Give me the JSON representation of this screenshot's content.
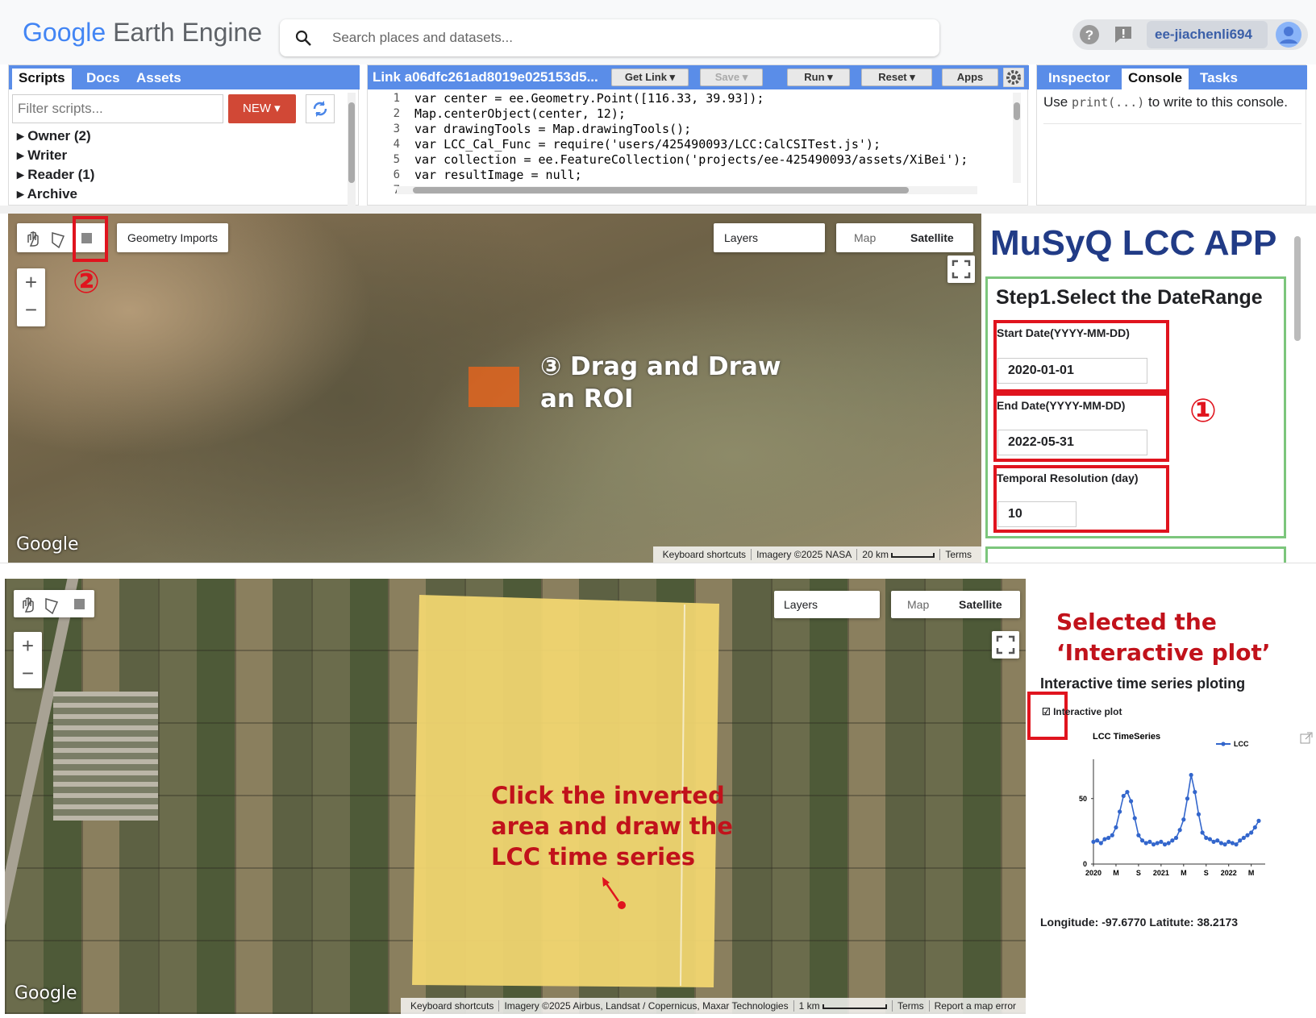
{
  "header": {
    "logo_google": "Google",
    "logo_product": "Earth Engine",
    "search_placeholder": "Search places and datasets...",
    "user": "ee-jiachenli694"
  },
  "scripts_panel": {
    "tabs": [
      "Scripts",
      "Docs",
      "Assets"
    ],
    "filter_placeholder": "Filter scripts...",
    "new_button": "NEW",
    "folders": [
      "Owner (2)",
      "Writer",
      "Reader (1)",
      "Archive"
    ]
  },
  "editor": {
    "title": "Link a06dfc261ad8019e025153d5...",
    "buttons": [
      "Get Link",
      "Save",
      "Run",
      "Reset",
      "Apps"
    ],
    "line_numbers": [
      1,
      2,
      3,
      4,
      5,
      6,
      7
    ],
    "lines": [
      "var center = ee.Geometry.Point([116.33, 39.93]);",
      "Map.centerObject(center, 12);",
      "var drawingTools = Map.drawingTools();",
      "var LCC_Cal_Func = require('users/425490093/LCC:CalCSITest.js');",
      "var collection = ee.FeatureCollection('projects/ee-425490093/assets/XiBei');",
      "var resultImage = null;"
    ]
  },
  "console_panel": {
    "tabs": [
      "Inspector",
      "Console",
      "Tasks"
    ],
    "hint_prefix": "Use",
    "hint_code": "print(...)",
    "hint_suffix": "to write to this console."
  },
  "map1": {
    "geometry_imports": "Geometry Imports",
    "layers": "Layers",
    "map_button": "Map",
    "satellite_button": "Satellite",
    "zoom_in": "+",
    "zoom_out": "−",
    "step2_marker": "②",
    "step3_line1": "③ Drag and Draw",
    "step3_line2": "an ROI",
    "google": "Google",
    "attribution": [
      "Keyboard shortcuts",
      "Imagery ©2025 NASA",
      "20 km",
      "Terms"
    ]
  },
  "app_panel": {
    "title": "MuSyQ LCC APP",
    "step1": "Step1.Select the DateRange",
    "step1_marker": "①",
    "fields": [
      {
        "label": "Start Date(YYYY-MM-DD)",
        "value": "2020-01-01"
      },
      {
        "label": "End Date(YYYY-MM-DD)",
        "value": "2022-05-31"
      },
      {
        "label": "Temporal Resolution (day)",
        "value": "10"
      }
    ]
  },
  "map2": {
    "layers": "Layers",
    "map_button": "Map",
    "satellite_button": "Satellite",
    "zoom_in": "+",
    "zoom_out": "−",
    "note_lines": [
      "Click the inverted",
      "area and draw the",
      "LCC time series"
    ],
    "google": "Google",
    "attribution": [
      "Keyboard shortcuts",
      "Imagery ©2025 Airbus, Landsat / Copernicus, Maxar Technologies",
      "1 km",
      "Terms",
      "Report a map error"
    ]
  },
  "result_panel": {
    "note_line1": "Selected the",
    "note_line2": "‘Interactive plot’",
    "heading": "Interactive time series ploting",
    "checkbox_label": "Interactive plot",
    "coords": "Longitude: -97.6770 Latitute: 38.2173"
  },
  "chart_data": {
    "type": "line",
    "title": "LCC TimeSeries",
    "series": [
      {
        "name": "LCC",
        "color": "#3366cc",
        "values": [
          17,
          18,
          16,
          19,
          20,
          22,
          28,
          40,
          52,
          55,
          48,
          35,
          22,
          18,
          16,
          17,
          15,
          16,
          17,
          15,
          16,
          18,
          20,
          26,
          34,
          50,
          68,
          55,
          38,
          24,
          20,
          19,
          17,
          18,
          16,
          15,
          17,
          16,
          15,
          18,
          20,
          22,
          24,
          28,
          33
        ]
      }
    ],
    "xlim": [
      0,
      44
    ],
    "xticks": [
      {
        "value": 0,
        "label": "2020"
      },
      {
        "value": 6,
        "label": "M"
      },
      {
        "value": 12,
        "label": "S"
      },
      {
        "value": 18,
        "label": "2021"
      },
      {
        "value": 24,
        "label": "M"
      },
      {
        "value": 30,
        "label": "S"
      },
      {
        "value": 36,
        "label": "2022"
      },
      {
        "value": 42,
        "label": "M"
      }
    ],
    "ylim": [
      0,
      80
    ],
    "yticks": [
      0,
      50
    ],
    "grid": false,
    "legend": "top-right"
  }
}
